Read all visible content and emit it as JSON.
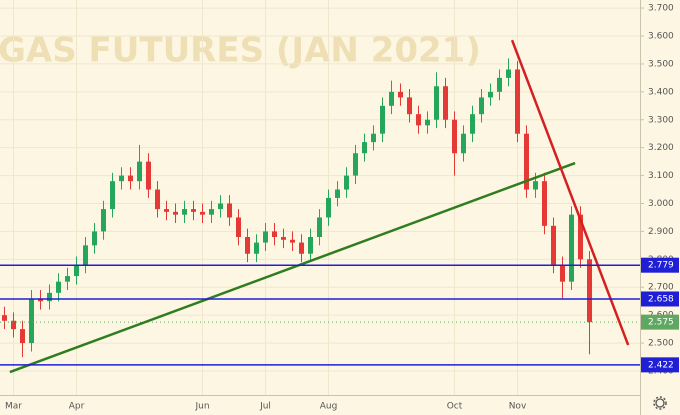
{
  "chart_data": {
    "type": "candlestick",
    "title": "GAS FUTURES (JAN 2021)",
    "categories": [
      null,
      "Mar",
      null,
      null,
      null,
      null,
      null,
      null,
      "Apr",
      null,
      null,
      null,
      null,
      null,
      null,
      null,
      null,
      null,
      null,
      null,
      null,
      null,
      "Jun",
      null,
      null,
      null,
      null,
      null,
      null,
      "Jul",
      null,
      null,
      null,
      null,
      null,
      null,
      "Aug",
      null,
      null,
      null,
      null,
      null,
      null,
      null,
      null,
      null,
      null,
      null,
      null,
      null,
      "Oct",
      null,
      null,
      null,
      null,
      null,
      null,
      "Nov",
      null,
      null,
      null,
      null,
      null,
      null,
      null,
      null
    ],
    "open": [
      2.6,
      2.58,
      2.55,
      2.5,
      2.66,
      2.65,
      2.68,
      2.72,
      2.74,
      2.78,
      2.85,
      2.9,
      2.98,
      3.08,
      3.1,
      3.08,
      3.15,
      3.05,
      2.98,
      2.97,
      2.96,
      2.98,
      2.97,
      2.96,
      2.98,
      3.0,
      2.95,
      2.88,
      2.82,
      2.86,
      2.9,
      2.88,
      2.87,
      2.86,
      2.82,
      2.88,
      2.95,
      3.02,
      3.05,
      3.1,
      3.18,
      3.22,
      3.25,
      3.35,
      3.4,
      3.38,
      3.32,
      3.28,
      3.3,
      3.42,
      3.3,
      3.18,
      3.25,
      3.32,
      3.38,
      3.4,
      3.45,
      3.48,
      3.25,
      3.05,
      3.08,
      2.92,
      2.78,
      2.72,
      2.96,
      2.8
    ],
    "high": [
      2.63,
      2.61,
      2.58,
      2.69,
      2.69,
      2.71,
      2.75,
      2.77,
      2.81,
      2.88,
      2.93,
      3.01,
      3.11,
      3.13,
      3.13,
      3.21,
      3.18,
      3.08,
      3.01,
      3.0,
      3.01,
      3.01,
      3.0,
      3.01,
      3.03,
      3.03,
      2.98,
      2.91,
      2.89,
      2.93,
      2.93,
      2.91,
      2.9,
      2.89,
      2.91,
      2.98,
      3.05,
      3.08,
      3.13,
      3.21,
      3.25,
      3.28,
      3.38,
      3.44,
      3.43,
      3.41,
      3.35,
      3.33,
      3.47,
      3.45,
      3.33,
      3.28,
      3.35,
      3.41,
      3.43,
      3.48,
      3.52,
      3.51,
      3.28,
      3.11,
      3.11,
      2.95,
      2.81,
      2.99,
      2.99,
      2.83
    ],
    "low": [
      2.55,
      2.52,
      2.45,
      2.47,
      2.62,
      2.62,
      2.65,
      2.69,
      2.71,
      2.75,
      2.82,
      2.87,
      2.95,
      3.05,
      3.05,
      3.05,
      3.02,
      2.95,
      2.94,
      2.93,
      2.93,
      2.94,
      2.93,
      2.93,
      2.95,
      2.92,
      2.85,
      2.79,
      2.79,
      2.83,
      2.85,
      2.84,
      2.83,
      2.79,
      2.79,
      2.85,
      2.92,
      2.99,
      3.02,
      3.07,
      3.15,
      3.19,
      3.22,
      3.32,
      3.35,
      3.29,
      3.25,
      3.25,
      3.27,
      3.27,
      3.1,
      3.15,
      3.22,
      3.29,
      3.35,
      3.37,
      3.42,
      3.22,
      3.02,
      3.02,
      2.89,
      2.75,
      2.66,
      2.69,
      2.77,
      2.46
    ],
    "close": [
      2.58,
      2.55,
      2.5,
      2.66,
      2.65,
      2.68,
      2.72,
      2.74,
      2.78,
      2.85,
      2.9,
      2.98,
      3.08,
      3.1,
      3.08,
      3.15,
      3.05,
      2.98,
      2.97,
      2.96,
      2.98,
      2.97,
      2.96,
      2.98,
      3.0,
      2.95,
      2.88,
      2.82,
      2.86,
      2.9,
      2.88,
      2.87,
      2.86,
      2.82,
      2.88,
      2.95,
      3.02,
      3.05,
      3.1,
      3.18,
      3.22,
      3.25,
      3.35,
      3.4,
      3.38,
      3.32,
      3.28,
      3.3,
      3.42,
      3.3,
      3.18,
      3.25,
      3.32,
      3.38,
      3.4,
      3.45,
      3.48,
      3.25,
      3.05,
      3.08,
      2.92,
      2.78,
      2.72,
      2.96,
      2.8,
      2.575
    ],
    "up_color": "#26a65b",
    "down_color": "#e53935",
    "ylim": [
      2.314,
      3.729
    ],
    "yticks": [
      {
        "value": 2.4,
        "label": "2.400"
      },
      {
        "value": 2.5,
        "label": "2.500"
      },
      {
        "value": 2.6,
        "label": "2.600"
      },
      {
        "value": 2.7,
        "label": "2.700"
      },
      {
        "value": 2.8,
        "label": "2.800"
      },
      {
        "value": 2.9,
        "label": "2.900"
      },
      {
        "value": 3.0,
        "label": "3.000"
      },
      {
        "value": 3.1,
        "label": "3.100"
      },
      {
        "value": 3.2,
        "label": "3.200"
      },
      {
        "value": 3.3,
        "label": "3.300"
      },
      {
        "value": 3.4,
        "label": "3.400"
      },
      {
        "value": 3.5,
        "label": "3.500"
      },
      {
        "value": 3.6,
        "label": "3.600"
      },
      {
        "value": 3.7,
        "label": "3.700"
      }
    ],
    "grid": true,
    "levels": [
      {
        "value": 2.779,
        "color": "#1f1fd6"
      },
      {
        "value": 2.658,
        "color": "#1f1fd6"
      },
      {
        "value": 2.422,
        "color": "#1f1fd6"
      }
    ],
    "last_price": {
      "value": 2.575,
      "color": "#5fa862"
    },
    "trendlines": [
      {
        "color": "#2e7d1e",
        "x": [
          0.6,
          63.4
        ],
        "y": [
          2.396,
          3.145
        ]
      },
      {
        "color": "#d42020",
        "x": [
          56.4,
          69.3
        ],
        "y": [
          3.585,
          2.493
        ]
      }
    ]
  }
}
